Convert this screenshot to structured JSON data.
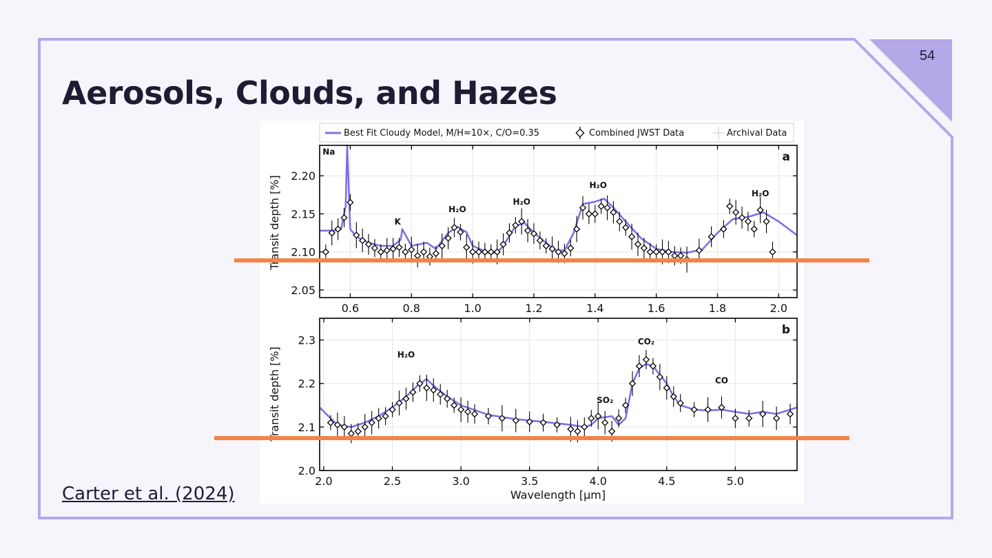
{
  "slide": {
    "title": "Aerosols, Clouds, and Hazes",
    "page_number": "54",
    "citation": "Carter et al. (2024)",
    "colors": {
      "frame": "#b4a8e8",
      "corner": "#b4a8e8",
      "title": "#1f1b33",
      "highlight": "#f0854a"
    }
  },
  "chart_data": [
    {
      "type": "line",
      "panel_label": "a",
      "ylabel": "Transit depth [%]",
      "xlim": [
        0.5,
        2.06
      ],
      "ylim": [
        2.04,
        2.24
      ],
      "xticks": [
        0.6,
        0.8,
        1.0,
        1.2,
        1.4,
        1.6,
        1.8,
        2.0
      ],
      "xtick_labels": [
        "0.6",
        "0.8",
        "1.0",
        "1.2",
        "1.4",
        "1.6",
        "1.8",
        "2.0"
      ],
      "yticks": [
        2.05,
        2.1,
        2.15,
        2.2
      ],
      "ytick_labels": [
        "2.05",
        "2.10",
        "2.15",
        "2.20"
      ],
      "grid": true,
      "legend": {
        "placement": "top",
        "entries": [
          "Best Fit Cloudy Model, M/H=10×, C/O=0.35",
          "Combined JWST Data",
          "Archival Data"
        ]
      },
      "annotations": [
        {
          "text": "Na",
          "x": 0.53,
          "y": 2.228
        },
        {
          "text": "K",
          "x": 0.755,
          "y": 2.136
        },
        {
          "text": "H₂O",
          "x": 0.95,
          "y": 2.152
        },
        {
          "text": "H₂O",
          "x": 1.16,
          "y": 2.162
        },
        {
          "text": "H₂O",
          "x": 1.41,
          "y": 2.184
        },
        {
          "text": "H₂O",
          "x": 1.94,
          "y": 2.173
        }
      ],
      "series": [
        {
          "name": "Best Fit Cloudy Model, M/H=10×, C/O=0.35",
          "color": "#7b71e3",
          "x": [
            0.5,
            0.55,
            0.57,
            0.585,
            0.59,
            0.6,
            0.62,
            0.66,
            0.7,
            0.74,
            0.765,
            0.77,
            0.8,
            0.85,
            0.88,
            0.92,
            0.95,
            0.98,
            1.0,
            1.05,
            1.08,
            1.1,
            1.14,
            1.17,
            1.2,
            1.24,
            1.27,
            1.3,
            1.33,
            1.36,
            1.4,
            1.43,
            1.46,
            1.5,
            1.55,
            1.6,
            1.65,
            1.7,
            1.75,
            1.8,
            1.85,
            1.88,
            1.9,
            1.95,
            2.0,
            2.06
          ],
          "y": [
            2.128,
            2.128,
            2.13,
            2.16,
            2.24,
            2.13,
            2.12,
            2.112,
            2.108,
            2.108,
            2.116,
            2.13,
            2.108,
            2.112,
            2.104,
            2.125,
            2.133,
            2.126,
            2.108,
            2.099,
            2.099,
            2.108,
            2.134,
            2.138,
            2.125,
            2.112,
            2.102,
            2.102,
            2.125,
            2.163,
            2.166,
            2.17,
            2.158,
            2.14,
            2.118,
            2.104,
            2.1,
            2.099,
            2.103,
            2.125,
            2.143,
            2.145,
            2.146,
            2.152,
            2.14,
            2.122
          ]
        },
        {
          "name": "Combined JWST Data",
          "color": "#000000",
          "x": [
            0.52,
            0.54,
            0.56,
            0.58,
            0.6,
            0.62,
            0.64,
            0.66,
            0.68,
            0.7,
            0.72,
            0.74,
            0.76,
            0.78,
            0.8,
            0.82,
            0.84,
            0.86,
            0.88,
            0.9,
            0.92,
            0.94,
            0.96,
            0.98,
            1.0,
            1.02,
            1.04,
            1.06,
            1.08,
            1.1,
            1.12,
            1.14,
            1.16,
            1.18,
            1.2,
            1.22,
            1.24,
            1.26,
            1.28,
            1.3,
            1.32,
            1.34,
            1.36,
            1.38,
            1.4,
            1.42,
            1.44,
            1.46,
            1.48,
            1.5,
            1.52,
            1.54,
            1.56,
            1.58,
            1.6,
            1.62,
            1.64,
            1.66,
            1.68,
            1.7,
            1.74,
            1.78,
            1.82,
            1.84,
            1.86,
            1.88,
            1.9,
            1.92,
            1.94,
            1.96,
            1.98
          ],
          "y": [
            2.1,
            2.125,
            2.13,
            2.145,
            2.165,
            2.122,
            2.115,
            2.11,
            2.105,
            2.1,
            2.102,
            2.104,
            2.106,
            2.1,
            2.103,
            2.095,
            2.1,
            2.094,
            2.098,
            2.108,
            2.118,
            2.132,
            2.126,
            2.106,
            2.1,
            2.1,
            2.1,
            2.1,
            2.1,
            2.11,
            2.125,
            2.135,
            2.14,
            2.128,
            2.124,
            2.115,
            2.108,
            2.104,
            2.1,
            2.098,
            2.105,
            2.13,
            2.158,
            2.15,
            2.15,
            2.16,
            2.158,
            2.152,
            2.14,
            2.132,
            2.12,
            2.11,
            2.105,
            2.1,
            2.1,
            2.1,
            2.1,
            2.095,
            2.095,
            2.09,
            2.102,
            2.12,
            2.13,
            2.16,
            2.152,
            2.145,
            2.14,
            2.13,
            2.155,
            2.14,
            2.1
          ]
        }
      ]
    },
    {
      "type": "line",
      "panel_label": "b",
      "xlabel": "Wavelength [μm]",
      "ylabel": "Transit depth [%]",
      "xlim": [
        1.97,
        5.45
      ],
      "ylim": [
        2.0,
        2.35
      ],
      "xticks": [
        2.0,
        2.5,
        3.0,
        3.5,
        4.0,
        4.5,
        5.0
      ],
      "xtick_labels": [
        "2.0",
        "2.5",
        "3.0",
        "3.5",
        "4.0",
        "4.5",
        "5.0"
      ],
      "yticks": [
        2.0,
        2.1,
        2.2,
        2.3
      ],
      "ytick_labels": [
        "2.0",
        "2.1",
        "2.2",
        "2.3"
      ],
      "grid": true,
      "annotations": [
        {
          "text": "H₂O",
          "x": 2.6,
          "y": 2.26
        },
        {
          "text": "SO₂",
          "x": 4.05,
          "y": 2.155
        },
        {
          "text": "CO₂",
          "x": 4.35,
          "y": 2.29
        },
        {
          "text": "CO",
          "x": 4.9,
          "y": 2.2
        }
      ],
      "series": [
        {
          "name": "Best Fit Cloudy Model, M/H=10×, C/O=0.35",
          "color": "#7b71e3",
          "x": [
            1.97,
            2.05,
            2.1,
            2.2,
            2.3,
            2.4,
            2.5,
            2.6,
            2.7,
            2.75,
            2.8,
            2.9,
            3.0,
            3.2,
            3.4,
            3.6,
            3.8,
            3.9,
            3.95,
            4.0,
            4.1,
            4.15,
            4.2,
            4.25,
            4.3,
            4.35,
            4.4,
            4.5,
            4.55,
            4.6,
            4.7,
            4.8,
            4.9,
            5.0,
            5.1,
            5.2,
            5.3,
            5.4,
            5.45
          ],
          "y": [
            2.145,
            2.12,
            2.105,
            2.1,
            2.11,
            2.125,
            2.145,
            2.17,
            2.2,
            2.21,
            2.195,
            2.17,
            2.15,
            2.128,
            2.118,
            2.112,
            2.105,
            2.1,
            2.105,
            2.12,
            2.125,
            2.105,
            2.12,
            2.2,
            2.235,
            2.245,
            2.24,
            2.2,
            2.17,
            2.15,
            2.14,
            2.138,
            2.14,
            2.135,
            2.13,
            2.135,
            2.13,
            2.14,
            2.145
          ]
        },
        {
          "name": "Combined JWST Data",
          "color": "#000000",
          "x": [
            2.05,
            2.1,
            2.15,
            2.2,
            2.25,
            2.3,
            2.35,
            2.4,
            2.45,
            2.5,
            2.55,
            2.6,
            2.65,
            2.7,
            2.75,
            2.8,
            2.85,
            2.9,
            2.95,
            3.0,
            3.05,
            3.1,
            3.2,
            3.3,
            3.4,
            3.5,
            3.6,
            3.7,
            3.8,
            3.85,
            3.9,
            3.95,
            4.0,
            4.05,
            4.1,
            4.15,
            4.2,
            4.25,
            4.3,
            4.35,
            4.4,
            4.45,
            4.5,
            4.55,
            4.6,
            4.7,
            4.8,
            4.9,
            5.0,
            5.1,
            5.2,
            5.3,
            5.4
          ],
          "y": [
            2.11,
            2.105,
            2.1,
            2.085,
            2.09,
            2.1,
            2.11,
            2.12,
            2.125,
            2.14,
            2.155,
            2.165,
            2.18,
            2.2,
            2.19,
            2.185,
            2.175,
            2.165,
            2.15,
            2.14,
            2.135,
            2.13,
            2.125,
            2.12,
            2.115,
            2.112,
            2.11,
            2.105,
            2.095,
            2.09,
            2.1,
            2.12,
            2.125,
            2.11,
            2.09,
            2.12,
            2.15,
            2.2,
            2.24,
            2.255,
            2.24,
            2.215,
            2.19,
            2.17,
            2.155,
            2.14,
            2.14,
            2.145,
            2.12,
            2.12,
            2.13,
            2.12,
            2.13
          ]
        }
      ]
    }
  ]
}
